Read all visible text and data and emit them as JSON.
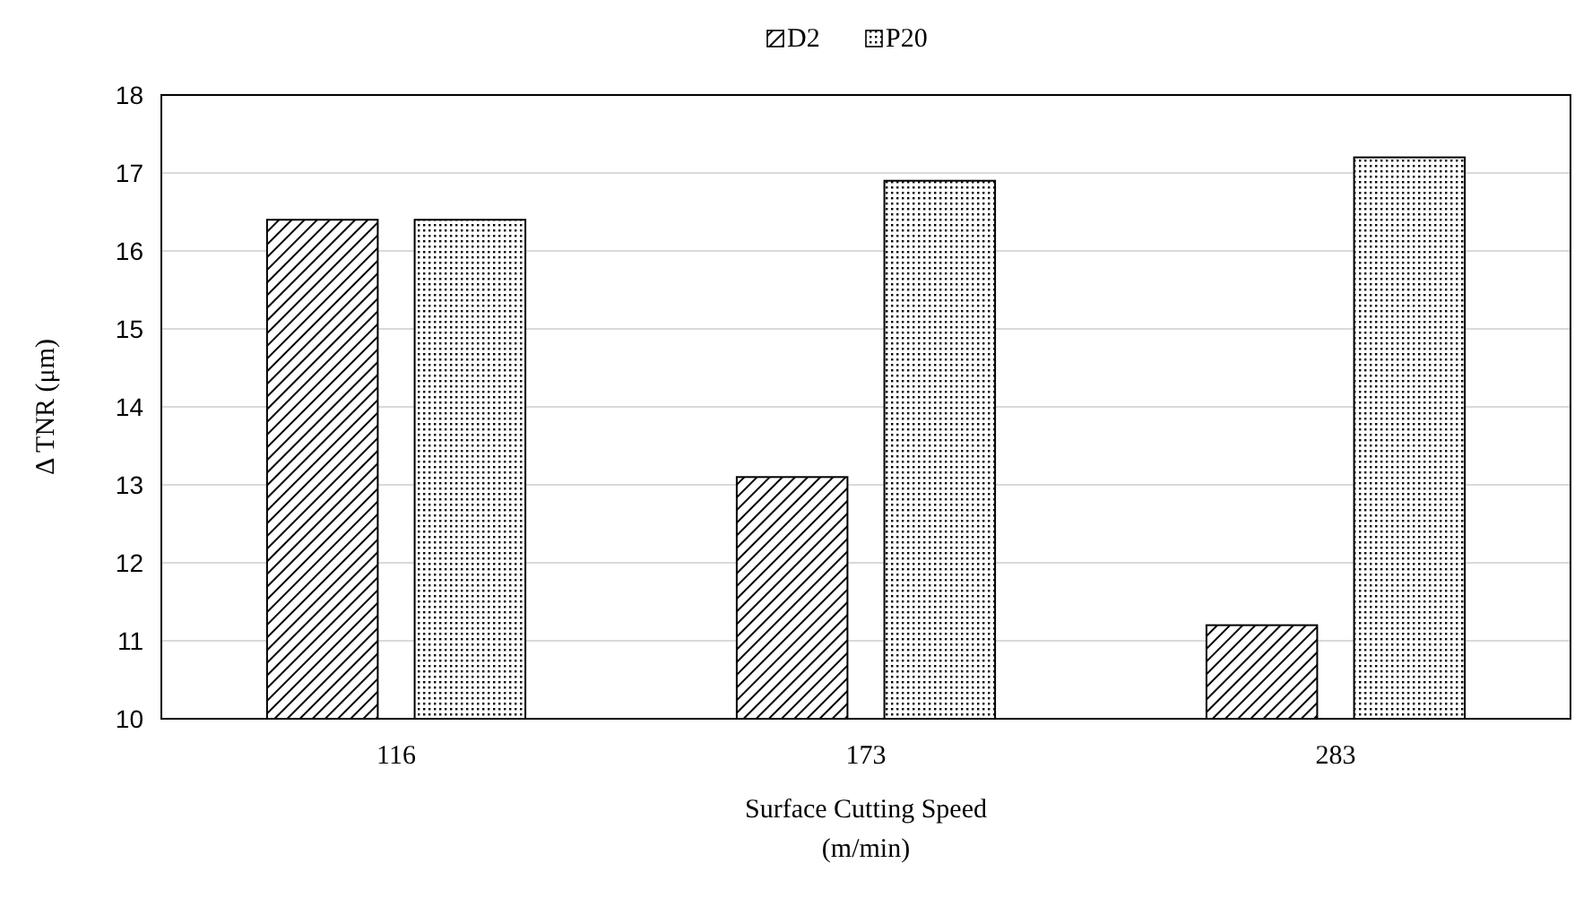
{
  "chart_data": {
    "type": "bar",
    "xlabel": "Surface Cutting Speed\n(m/min)",
    "ylabel": "Δ TNR (μm)",
    "categories": [
      "116",
      "173",
      "283"
    ],
    "series": [
      {
        "name": "D2",
        "color": "#000000",
        "values": [
          16.4,
          13.1,
          11.2
        ]
      },
      {
        "name": "P20",
        "color": "#000000",
        "values": [
          16.4,
          16.9,
          17.2
        ]
      }
    ],
    "ylim": [
      10,
      18
    ],
    "yticks": [
      10,
      11,
      12,
      13,
      14,
      15,
      16,
      17,
      18
    ],
    "grid": "y",
    "legend": "top"
  }
}
